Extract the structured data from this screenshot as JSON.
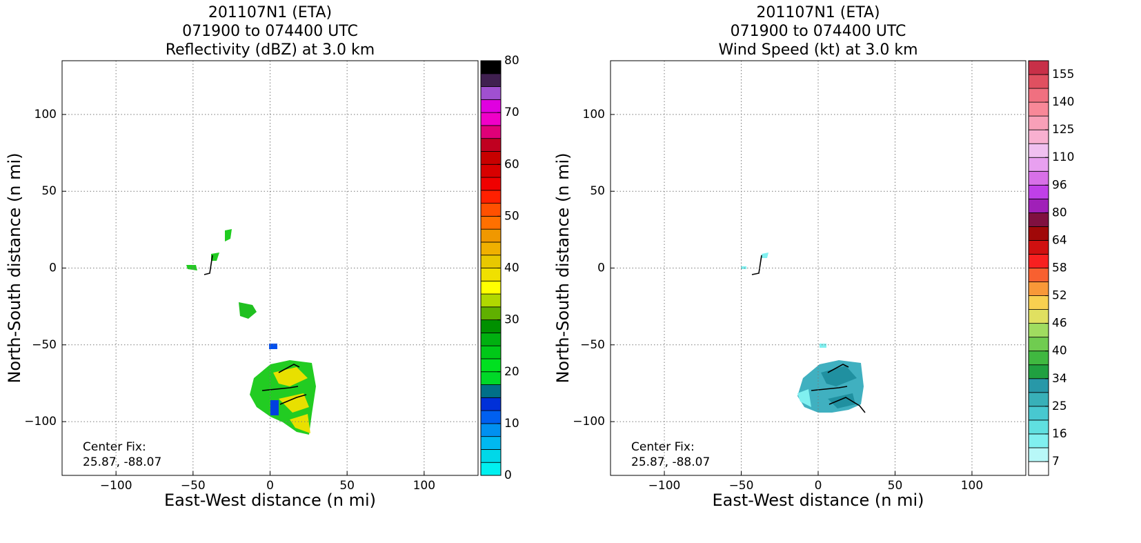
{
  "chart_data": [
    {
      "type": "radar",
      "title": [
        "201107N1 (ETA)",
        "071900 to 074400 UTC",
        "Reflectivity (dBZ) at 3.0 km"
      ],
      "xlabel": "East-West distance (n mi)",
      "ylabel": "North-South distance (n mi)",
      "xlim": [
        -135,
        135
      ],
      "ylim": [
        -135,
        135
      ],
      "xticks": [
        {
          "value": -100,
          "label": "−100"
        },
        {
          "value": -50,
          "label": "−50"
        },
        0,
        50,
        100
      ],
      "yticks": [
        {
          "value": -100,
          "label": "−100"
        },
        {
          "value": -50,
          "label": "−50"
        },
        0,
        50,
        100
      ],
      "grid": true,
      "annotation": [
        "Center Fix:",
        "25.87, -88.07"
      ],
      "colorbar": {
        "clim": [
          0,
          80
        ],
        "ticks": [
          0,
          10,
          20,
          30,
          40,
          50,
          60,
          70,
          80
        ],
        "colors": [
          "#00f0f0",
          "#00d8e8",
          "#00b8f0",
          "#0090f0",
          "#0060f0",
          "#0030d8",
          "#007088",
          "#00d828",
          "#00e020",
          "#00c818",
          "#00b010",
          "#009000",
          "#60b000",
          "#b0d800",
          "#ffff00",
          "#f0e000",
          "#e8c800",
          "#f0b000",
          "#f09800",
          "#ff7000",
          "#ff5000",
          "#ff2000",
          "#f00000",
          "#d80000",
          "#c80000",
          "#c00020",
          "#e00078",
          "#f000c8",
          "#e000e0",
          "#a050d0",
          "#402050",
          "#000000"
        ]
      }
    },
    {
      "type": "radar",
      "title": [
        "201107N1 (ETA)",
        "071900 to 074400 UTC",
        "Wind Speed (kt) at 3.0 km"
      ],
      "xlabel": "East-West distance (n mi)",
      "ylabel": "North-South distance (n mi)",
      "xlim": [
        -135,
        135
      ],
      "ylim": [
        -135,
        135
      ],
      "xticks": [
        {
          "value": -100,
          "label": "−100"
        },
        {
          "value": -50,
          "label": "−50"
        },
        0,
        50,
        100
      ],
      "yticks": [
        {
          "value": -100,
          "label": "−100"
        },
        {
          "value": -50,
          "label": "−50"
        },
        0,
        50,
        100
      ],
      "grid": true,
      "annotation": [
        "Center Fix:",
        "25.87, -88.07"
      ],
      "colorbar": {
        "levels": [
          4,
          7,
          11.5,
          16,
          20.5,
          25,
          29.5,
          34,
          37,
          40,
          43,
          46,
          49,
          52,
          55,
          58,
          61,
          64,
          72,
          80,
          88,
          96,
          103,
          110,
          117.5,
          125,
          132.5,
          140,
          147.5,
          155,
          162
        ],
        "ticks": [
          7,
          16,
          25,
          34,
          40,
          46,
          52,
          58,
          64,
          80,
          96,
          110,
          125,
          140,
          155
        ],
        "colors": [
          "#ffffff",
          "#b8f8f8",
          "#80f0f0",
          "#60e0e0",
          "#48c8d0",
          "#38b0b8",
          "#2898a8",
          "#20a040",
          "#40b840",
          "#70cc50",
          "#a0dc60",
          "#e0e060",
          "#f8d050",
          "#f89838",
          "#f86030",
          "#f82020",
          "#d01010",
          "#a00808",
          "#801040",
          "#a020b8",
          "#c040e8",
          "#d870e8",
          "#e8a0f0",
          "#f0c0f0",
          "#f8b0d0",
          "#f8a0b8",
          "#f88898",
          "#f07080",
          "#e05060",
          "#c83048"
        ]
      }
    }
  ]
}
